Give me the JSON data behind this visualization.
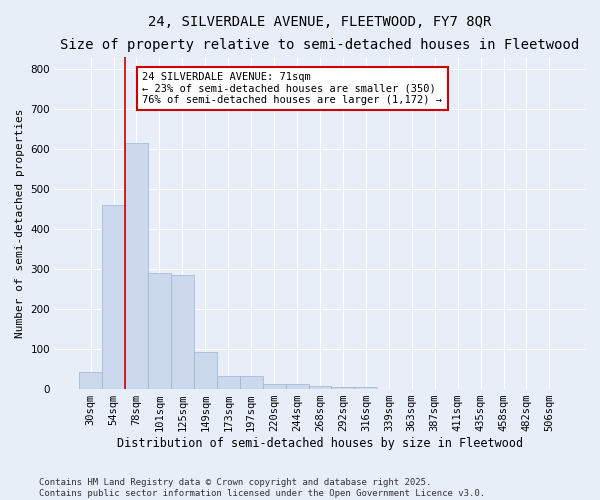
{
  "title1": "24, SILVERDALE AVENUE, FLEETWOOD, FY7 8QR",
  "title2": "Size of property relative to semi-detached houses in Fleetwood",
  "xlabel": "Distribution of semi-detached houses by size in Fleetwood",
  "ylabel": "Number of semi-detached properties",
  "bar_labels": [
    "30sqm",
    "54sqm",
    "78sqm",
    "101sqm",
    "125sqm",
    "149sqm",
    "173sqm",
    "197sqm",
    "220sqm",
    "244sqm",
    "268sqm",
    "292sqm",
    "316sqm",
    "339sqm",
    "363sqm",
    "387sqm",
    "411sqm",
    "435sqm",
    "458sqm",
    "482sqm",
    "506sqm"
  ],
  "bar_values": [
    42,
    460,
    615,
    290,
    285,
    93,
    33,
    33,
    12,
    12,
    7,
    5,
    5,
    0,
    0,
    0,
    0,
    0,
    0,
    0,
    0
  ],
  "bar_color": "#ccd9ed",
  "bar_edge_color": "#9ab4d4",
  "background_color": "#e8eef8",
  "grid_color": "#ffffff",
  "red_line_x": 1.5,
  "annotation_text": "24 SILVERDALE AVENUE: 71sqm\n← 23% of semi-detached houses are smaller (350)\n76% of semi-detached houses are larger (1,172) →",
  "annotation_box_color": "#ffffff",
  "annotation_border_color": "#cc0000",
  "ylim": [
    0,
    830
  ],
  "yticks": [
    0,
    100,
    200,
    300,
    400,
    500,
    600,
    700,
    800
  ],
  "footer1": "Contains HM Land Registry data © Crown copyright and database right 2025.",
  "footer2": "Contains public sector information licensed under the Open Government Licence v3.0.",
  "title1_fontsize": 10,
  "title2_fontsize": 9,
  "xlabel_fontsize": 8.5,
  "ylabel_fontsize": 8,
  "tick_fontsize": 7.5,
  "annotation_fontsize": 7.5,
  "footer_fontsize": 6.5
}
